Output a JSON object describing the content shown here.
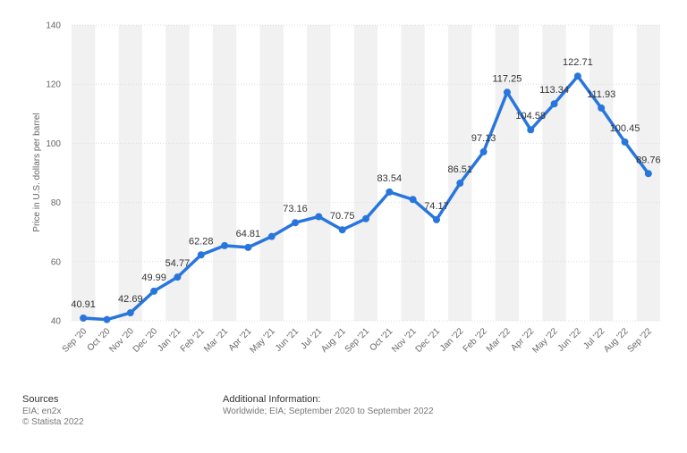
{
  "chart_data": {
    "type": "line",
    "title": "",
    "xlabel": "",
    "ylabel": "Price in U.S. dollars per barrel",
    "ylim": [
      40,
      140
    ],
    "yticks": [
      40,
      60,
      80,
      100,
      120,
      140
    ],
    "grid": true,
    "legend": "none",
    "categories": [
      "Sep '20",
      "Oct '20",
      "Nov '20",
      "Dec '20",
      "Jan '21",
      "Feb '21",
      "Mar '21",
      "Apr '21",
      "May '21",
      "Jun '21",
      "Jul '21",
      "Aug '21",
      "Sep '21",
      "Oct '21",
      "Nov '21",
      "Dec '21",
      "Jan '22",
      "Feb '22",
      "Mar '22",
      "Apr '22",
      "May '22",
      "Jun '22",
      "Jul '22",
      "Aug '22",
      "Sep '22"
    ],
    "series": [
      {
        "name": "",
        "values": [
          40.91,
          40.4,
          42.69,
          49.99,
          54.77,
          62.28,
          65.4,
          64.81,
          68.5,
          73.16,
          75.2,
          70.75,
          74.5,
          83.54,
          81.0,
          74.17,
          86.51,
          97.13,
          117.25,
          104.58,
          113.34,
          122.71,
          111.93,
          100.45,
          89.76
        ],
        "labels": [
          "40.91",
          "",
          "42.69",
          "49.99",
          "54.77",
          "62.28",
          "",
          "64.81",
          "",
          "73.16",
          "",
          "70.75",
          "",
          "83.54",
          "",
          "74.17",
          "86.51",
          "97.13",
          "117.25",
          "104.58",
          "113.34",
          "122.71",
          "111.93",
          "100.45",
          "89.76"
        ]
      }
    ],
    "line_color": "#2876dd",
    "band_color": "#f1f1f1",
    "grid_color": "#dcdcdc"
  },
  "footer": {
    "sources_heading": "Sources",
    "sources_line1": "EIA; en2x",
    "sources_line2": "© Statista 2022",
    "info_heading": "Additional Information:",
    "info_line1": "Worldwide; EIA; September 2020 to September 2022"
  }
}
